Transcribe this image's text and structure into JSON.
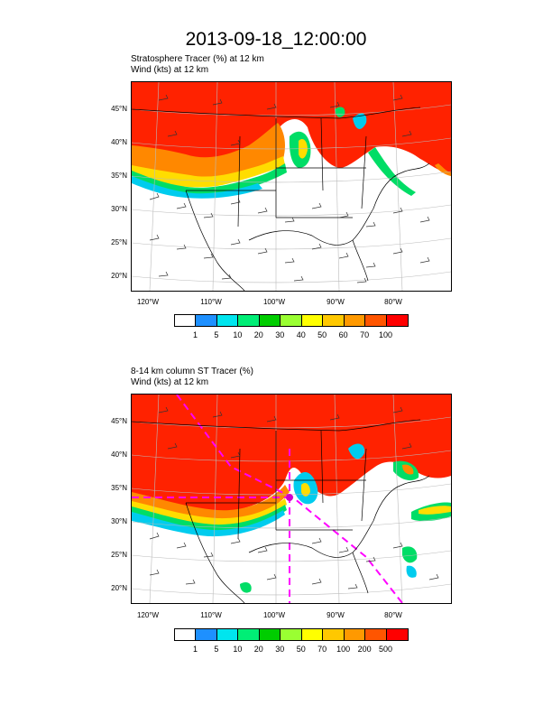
{
  "title": "2013-09-18_12:00:00",
  "panel1": {
    "field_line": "Stratosphere Tracer   (%)     at   12 km",
    "wind_line": "Wind    (kts)     at   12 km",
    "lat_labels": [
      "45°N",
      "40°N",
      "35°N",
      "30°N",
      "25°N",
      "20°N"
    ],
    "lon_labels": [
      "120°W",
      "110°W",
      "100°W",
      "90°W",
      "80°W"
    ],
    "colorbar": {
      "colors": [
        "#ffffff",
        "#1e90ff",
        "#00e5ee",
        "#00ee76",
        "#00cd00",
        "#9aff32",
        "#ffff00",
        "#ffc800",
        "#ff9900",
        "#ff5500",
        "#ff0000"
      ],
      "labels": [
        "1",
        "5",
        "10",
        "20",
        "30",
        "40",
        "50",
        "60",
        "70",
        "100"
      ]
    }
  },
  "panel2": {
    "field_line": "8-14 km column ST Tracer   (%)",
    "wind_line": "Wind    (kts)     at   12 km",
    "lat_labels": [
      "45°N",
      "40°N",
      "35°N",
      "30°N",
      "25°N",
      "20°N"
    ],
    "lon_labels": [
      "120°W",
      "110°W",
      "100°W",
      "90°W",
      "80°W"
    ],
    "colorbar": {
      "colors": [
        "#ffffff",
        "#1e90ff",
        "#00e5ee",
        "#00ee76",
        "#00cd00",
        "#9aff32",
        "#ffff00",
        "#ffc800",
        "#ff9900",
        "#ff5500",
        "#ff0000"
      ],
      "labels": [
        "1",
        "5",
        "10",
        "20",
        "30",
        "50",
        "70",
        "100",
        "200",
        "500"
      ]
    }
  }
}
